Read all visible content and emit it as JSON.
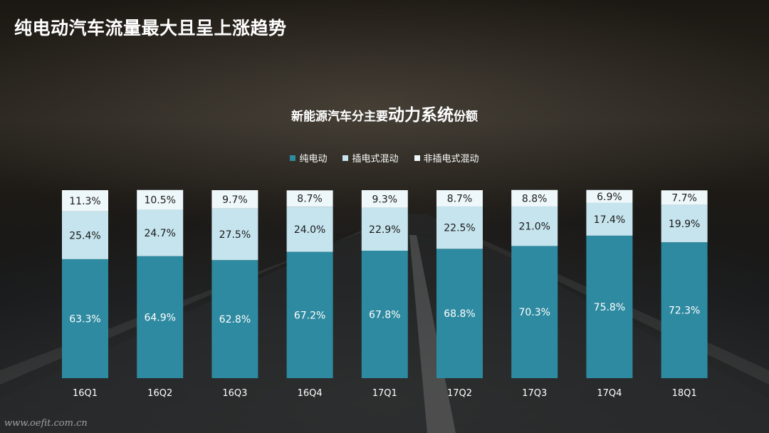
{
  "page": {
    "title": "纯电动汽车流量最大且呈上涨趋势",
    "watermark": "www.oefit.com.cn"
  },
  "chart_data": {
    "type": "bar",
    "stacked": true,
    "title_parts": [
      "新能源汽车分主要",
      "动力系统",
      "份额"
    ],
    "categories": [
      "16Q1",
      "16Q2",
      "16Q3",
      "16Q4",
      "17Q1",
      "17Q2",
      "17Q3",
      "17Q4",
      "18Q1"
    ],
    "series": [
      {
        "name": "纯电动",
        "color": "#2e8aa0",
        "values": [
          63.3,
          64.9,
          62.8,
          67.2,
          67.8,
          68.8,
          70.3,
          75.8,
          72.3
        ]
      },
      {
        "name": "插电式混动",
        "color": "#c6e4ee",
        "values": [
          25.4,
          24.7,
          27.5,
          24.0,
          22.9,
          22.5,
          21.0,
          17.4,
          19.9
        ]
      },
      {
        "name": "非插电式混动",
        "color": "#eef7fa",
        "values": [
          11.3,
          10.5,
          9.7,
          8.7,
          9.3,
          8.7,
          8.8,
          6.9,
          7.7
        ]
      }
    ],
    "value_labels": [
      [
        "63.3%",
        "64.9%",
        "62.8%",
        "67.2%",
        "67.8%",
        "68.8%",
        "70.3%",
        "75.8%",
        "72.3%"
      ],
      [
        "25.4%",
        "24.7%",
        "27.5%",
        "24.0%",
        "22.9%",
        "22.5%",
        "21.0%",
        "17.4%",
        "19.9%"
      ],
      [
        "11.3%",
        "10.5%",
        "9.7%",
        "8.7%",
        "9.3%",
        "8.7%",
        "8.8%",
        "6.9%",
        "7.7%"
      ]
    ],
    "ylim": [
      0,
      100
    ],
    "legend_position": "top-center",
    "grid": false
  }
}
